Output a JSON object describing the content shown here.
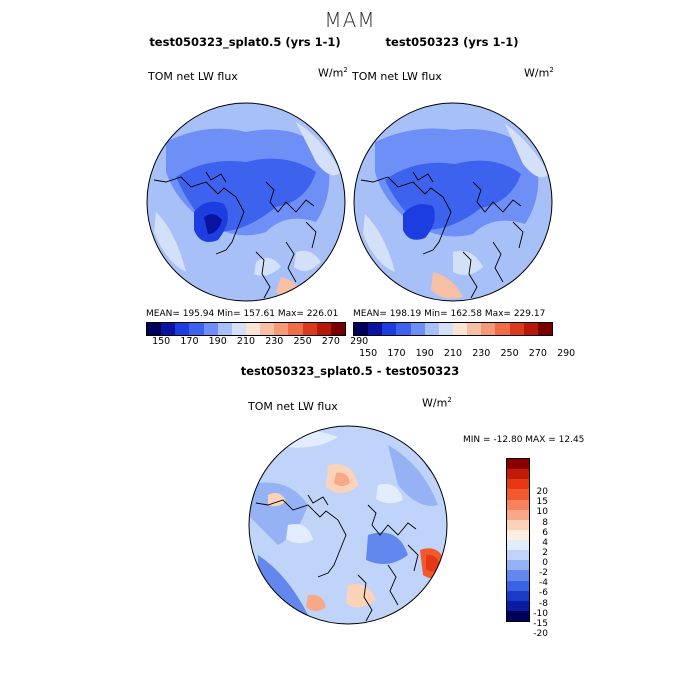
{
  "title": "MAM",
  "panels": [
    {
      "title": "test050323_splat0.5 (yrs 1-1)",
      "variable": "TOM net LW flux",
      "units_base": "W/m",
      "units_exp": "2",
      "stats": "MEAN= 195.94  Min= 157.61  Max= 226.01"
    },
    {
      "title": "test050323 (yrs 1-1)",
      "variable": "TOM net LW flux",
      "units_base": "W/m",
      "units_exp": "2",
      "stats": "MEAN= 198.19  Min= 162.58  Max= 229.17"
    }
  ],
  "diff": {
    "title": "test050323_splat0.5 - test050323",
    "variable": "TOM net LW flux",
    "units_base": "W/m",
    "units_exp": "2",
    "stats": "MIN = -12.80 MAX =  12.45"
  },
  "colorbar_top": {
    "labels": [
      "150",
      "170",
      "190",
      "210",
      "230",
      "250",
      "270",
      "290"
    ],
    "colors": [
      "#00005a",
      "#0a14a0",
      "#1c3ee0",
      "#3d62ee",
      "#6e90f6",
      "#a8c0f8",
      "#d4e0f8",
      "#fbe4d4",
      "#f7c0a4",
      "#f49a78",
      "#ee6e4a",
      "#dc3a1e",
      "#b81808",
      "#7a0000"
    ]
  },
  "colorbar_diff": {
    "labels": [
      "20",
      "15",
      "10",
      "8",
      "6",
      "4",
      "2",
      "0",
      "-2",
      "-4",
      "-6",
      "-8",
      "-10",
      "-15",
      "-20"
    ],
    "colors": [
      "#8a0000",
      "#c21a04",
      "#e63814",
      "#f05a2e",
      "#f4825a",
      "#f8a886",
      "#fcd2b8",
      "#fdeee4",
      "#e2ecfc",
      "#c0d4fa",
      "#94b2f4",
      "#6288ee",
      "#3a62e4",
      "#1a3ac8",
      "#0a1ca0",
      "#00005a"
    ]
  },
  "chart_data": [
    {
      "type": "heatmap",
      "projection": "north-polar-stereographic",
      "title": "test050323_splat0.5 (yrs 1-1)",
      "variable": "TOM net LW flux",
      "units": "W/m^2",
      "mean": 195.94,
      "min": 157.61,
      "max": 226.01,
      "levels": [
        150,
        160,
        170,
        180,
        190,
        200,
        210,
        220,
        230,
        240,
        250,
        260,
        270,
        280,
        290
      ]
    },
    {
      "type": "heatmap",
      "projection": "north-polar-stereographic",
      "title": "test050323 (yrs 1-1)",
      "variable": "TOM net LW flux",
      "units": "W/m^2",
      "mean": 198.19,
      "min": 162.58,
      "max": 229.17,
      "levels": [
        150,
        160,
        170,
        180,
        190,
        200,
        210,
        220,
        230,
        240,
        250,
        260,
        270,
        280,
        290
      ]
    },
    {
      "type": "heatmap",
      "projection": "north-polar-stereographic",
      "title": "test050323_splat0.5 - test050323",
      "variable": "TOM net LW flux",
      "units": "W/m^2",
      "min": -12.8,
      "max": 12.45,
      "levels": [
        -20,
        -15,
        -10,
        -8,
        -6,
        -4,
        -2,
        0,
        2,
        4,
        6,
        8,
        10,
        15,
        20
      ]
    }
  ]
}
